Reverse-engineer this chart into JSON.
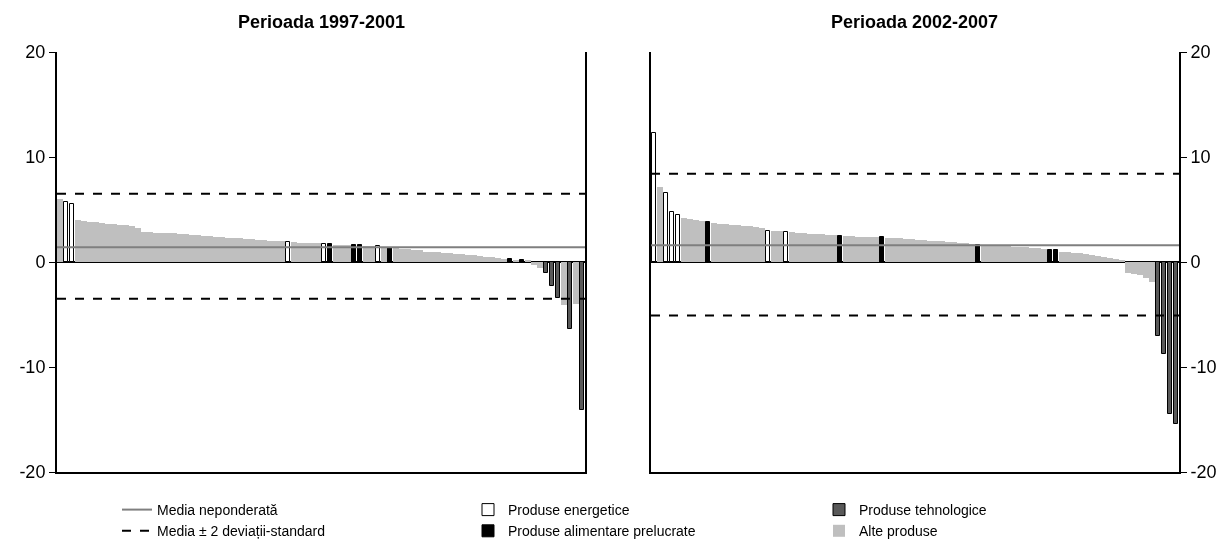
{
  "chart_data": [
    {
      "type": "bar",
      "title": "Perioada 1997-2001",
      "categories": [
        null,
        null,
        null,
        null,
        null,
        null,
        null,
        null,
        null,
        null,
        null,
        null,
        null,
        null,
        null,
        null,
        null,
        null,
        null,
        null,
        null,
        null,
        null,
        null,
        null,
        null,
        null,
        null,
        null,
        null,
        null,
        null,
        null,
        null,
        null,
        null,
        null,
        null,
        null,
        null,
        null,
        null,
        null,
        null,
        null,
        null,
        null,
        null,
        null,
        null,
        null,
        null,
        null,
        null,
        null,
        null,
        null,
        null,
        null,
        null,
        null,
        null,
        null,
        null,
        null,
        null,
        null,
        null,
        null,
        null,
        null,
        null,
        null,
        null,
        null,
        null,
        null,
        null,
        null,
        null,
        null,
        null,
        null,
        null,
        null,
        null,
        null,
        null
      ],
      "series": [
        {
          "name": "Produse energetice",
          "color": "#ffffff",
          "values": [
            null,
            5.7,
            5.5,
            null,
            null,
            null,
            null,
            null,
            null,
            null,
            null,
            null,
            null,
            null,
            null,
            null,
            null,
            null,
            null,
            null,
            null,
            null,
            null,
            null,
            null,
            null,
            null,
            null,
            null,
            null,
            null,
            null,
            null,
            null,
            null,
            null,
            null,
            null,
            1.9,
            null,
            null,
            null,
            null,
            null,
            1.7,
            null,
            null,
            null,
            null,
            null,
            null,
            null,
            null,
            1.5,
            null,
            null,
            null,
            null,
            null,
            null,
            null,
            null,
            null,
            null,
            null,
            null,
            null,
            null,
            null,
            null,
            null,
            null,
            null,
            null,
            null,
            null,
            null,
            null,
            null,
            null,
            null,
            null,
            null,
            null,
            null,
            null,
            null,
            null
          ]
        },
        {
          "name": "Produse alimentare prelucrate",
          "color": "#000000",
          "values": [
            null,
            null,
            null,
            null,
            null,
            null,
            null,
            null,
            null,
            null,
            null,
            null,
            null,
            null,
            null,
            null,
            null,
            null,
            null,
            null,
            null,
            null,
            null,
            null,
            null,
            null,
            null,
            null,
            null,
            null,
            null,
            null,
            null,
            null,
            null,
            null,
            null,
            null,
            null,
            null,
            null,
            null,
            null,
            null,
            null,
            1.7,
            null,
            null,
            null,
            1.6,
            1.6,
            null,
            null,
            null,
            null,
            1.3,
            null,
            null,
            null,
            null,
            null,
            null,
            null,
            null,
            null,
            null,
            null,
            null,
            null,
            null,
            null,
            null,
            null,
            null,
            null,
            0.3,
            null,
            0.2,
            null,
            null,
            null,
            null,
            null,
            null,
            null,
            null,
            null,
            null
          ]
        },
        {
          "name": "Produse tehnologice",
          "color": "#595959",
          "values": [
            null,
            null,
            null,
            null,
            null,
            null,
            null,
            null,
            null,
            null,
            null,
            null,
            null,
            null,
            null,
            null,
            null,
            null,
            null,
            null,
            null,
            null,
            null,
            null,
            null,
            null,
            null,
            null,
            null,
            null,
            null,
            null,
            null,
            null,
            null,
            null,
            null,
            null,
            null,
            null,
            null,
            null,
            null,
            null,
            null,
            null,
            null,
            null,
            null,
            null,
            null,
            null,
            null,
            null,
            null,
            null,
            null,
            null,
            null,
            null,
            null,
            null,
            null,
            null,
            null,
            null,
            null,
            null,
            null,
            null,
            null,
            null,
            null,
            null,
            null,
            null,
            null,
            null,
            null,
            null,
            null,
            -1.0,
            -2.3,
            -3.4,
            null,
            -6.4,
            null,
            -14.1
          ]
        },
        {
          "name": "Alte produse",
          "color": "#bfbfbf",
          "values": [
            6.0,
            null,
            null,
            4.0,
            3.9,
            3.8,
            3.8,
            3.7,
            3.6,
            3.6,
            3.5,
            3.5,
            3.4,
            3.2,
            2.9,
            2.9,
            2.8,
            2.8,
            2.8,
            2.8,
            2.7,
            2.7,
            2.6,
            2.6,
            2.5,
            2.5,
            2.4,
            2.4,
            2.3,
            2.3,
            2.3,
            2.2,
            2.2,
            2.1,
            2.1,
            2.0,
            2.0,
            2.0,
            null,
            1.9,
            1.8,
            1.8,
            1.8,
            1.8,
            null,
            null,
            1.6,
            1.6,
            1.6,
            null,
            null,
            1.5,
            1.5,
            null,
            1.4,
            null,
            1.3,
            1.2,
            1.2,
            1.1,
            1.1,
            1.0,
            1.0,
            1.0,
            0.9,
            0.9,
            0.8,
            0.8,
            0.7,
            0.7,
            0.6,
            0.5,
            0.5,
            0.4,
            0.3,
            null,
            0.2,
            null,
            0.1,
            -0.3,
            -0.6,
            null,
            null,
            null,
            -4.1,
            null,
            -4.0,
            null
          ]
        }
      ],
      "ylim": [
        -20,
        20
      ],
      "yticks": [
        -20,
        -10,
        0,
        10,
        20
      ],
      "legend": "bottom",
      "ref_lines": [
        {
          "axis": "y",
          "value": 1.4,
          "label": "Media neponderată",
          "color": "#7f7f7f",
          "line_style": "solid"
        },
        {
          "axis": "y",
          "value": 6.5,
          "label": "Media ± 2 deviații-standard",
          "color": "#000000",
          "line_style": "dashed"
        },
        {
          "axis": "y",
          "value": -3.5,
          "color": "#000000",
          "line_style": "dashed"
        }
      ]
    },
    {
      "type": "bar",
      "title": "Perioada 2002-2007",
      "categories": [
        null,
        null,
        null,
        null,
        null,
        null,
        null,
        null,
        null,
        null,
        null,
        null,
        null,
        null,
        null,
        null,
        null,
        null,
        null,
        null,
        null,
        null,
        null,
        null,
        null,
        null,
        null,
        null,
        null,
        null,
        null,
        null,
        null,
        null,
        null,
        null,
        null,
        null,
        null,
        null,
        null,
        null,
        null,
        null,
        null,
        null,
        null,
        null,
        null,
        null,
        null,
        null,
        null,
        null,
        null,
        null,
        null,
        null,
        null,
        null,
        null,
        null,
        null,
        null,
        null,
        null,
        null,
        null,
        null,
        null,
        null,
        null,
        null,
        null,
        null,
        null,
        null,
        null,
        null,
        null,
        null,
        null,
        null,
        null,
        null,
        null,
        null,
        null
      ],
      "series": [
        {
          "color": "#ffffff",
          "values": [
            12.3,
            null,
            6.6,
            4.8,
            4.5,
            null,
            null,
            null,
            null,
            null,
            null,
            null,
            null,
            null,
            null,
            null,
            null,
            null,
            null,
            3.0,
            null,
            null,
            2.9,
            null,
            null,
            null,
            null,
            null,
            null,
            null,
            null,
            null,
            null,
            null,
            null,
            null,
            null,
            null,
            null,
            null,
            null,
            null,
            null,
            null,
            null,
            null,
            null,
            null,
            null,
            null,
            null,
            null,
            null,
            null,
            null,
            null,
            null,
            null,
            null,
            null,
            null,
            null,
            null,
            null,
            null,
            null,
            null,
            null,
            null,
            null,
            null,
            null,
            null,
            null,
            null,
            null,
            null,
            null,
            null,
            null,
            null,
            null,
            null,
            null,
            null,
            null,
            null,
            null
          ]
        },
        {
          "color": "#000000",
          "values": [
            null,
            null,
            null,
            null,
            null,
            null,
            null,
            null,
            null,
            3.8,
            null,
            null,
            null,
            null,
            null,
            null,
            null,
            null,
            null,
            null,
            null,
            null,
            null,
            null,
            null,
            null,
            null,
            null,
            null,
            null,
            null,
            2.5,
            null,
            null,
            null,
            null,
            null,
            null,
            2.4,
            null,
            null,
            null,
            null,
            null,
            null,
            null,
            null,
            null,
            null,
            null,
            null,
            null,
            null,
            null,
            1.6,
            null,
            null,
            null,
            null,
            null,
            null,
            null,
            null,
            null,
            null,
            null,
            1.1,
            1.1,
            null,
            null,
            null,
            null,
            null,
            null,
            null,
            null,
            null,
            null,
            null,
            null,
            null,
            null,
            null,
            null,
            null,
            null,
            null,
            null
          ]
        },
        {
          "color": "#595959",
          "values": [
            null,
            null,
            null,
            null,
            null,
            null,
            null,
            null,
            null,
            null,
            null,
            null,
            null,
            null,
            null,
            null,
            null,
            null,
            null,
            null,
            null,
            null,
            null,
            null,
            null,
            null,
            null,
            null,
            null,
            null,
            null,
            null,
            null,
            null,
            null,
            null,
            null,
            null,
            null,
            null,
            null,
            null,
            null,
            null,
            null,
            null,
            null,
            null,
            null,
            null,
            null,
            null,
            null,
            null,
            null,
            null,
            null,
            null,
            null,
            null,
            null,
            null,
            null,
            null,
            null,
            null,
            null,
            null,
            null,
            null,
            null,
            null,
            null,
            null,
            null,
            null,
            null,
            null,
            null,
            null,
            null,
            null,
            null,
            null,
            -7.0,
            -8.8,
            -14.5,
            -15.4
          ]
        },
        {
          "color": "#bfbfbf",
          "values": [
            null,
            7.1,
            null,
            null,
            null,
            4.2,
            4.1,
            4.0,
            3.9,
            null,
            3.7,
            3.6,
            3.6,
            3.5,
            3.5,
            3.4,
            3.4,
            3.3,
            3.2,
            null,
            3.0,
            3.0,
            null,
            2.9,
            2.8,
            2.8,
            2.7,
            2.7,
            2.7,
            2.6,
            2.6,
            null,
            2.5,
            2.5,
            2.4,
            2.4,
            2.4,
            2.4,
            null,
            2.3,
            2.3,
            2.3,
            2.2,
            2.2,
            2.1,
            2.1,
            2.0,
            2.0,
            2.0,
            1.9,
            1.9,
            1.8,
            1.8,
            1.7,
            null,
            1.6,
            1.5,
            1.5,
            1.5,
            1.5,
            1.4,
            1.4,
            1.4,
            1.3,
            1.3,
            1.2,
            null,
            null,
            1.0,
            1.0,
            0.9,
            0.9,
            0.8,
            0.7,
            0.6,
            0.5,
            0.4,
            0.3,
            0.1,
            -1.0,
            -1.1,
            -1.2,
            -1.5,
            -1.9,
            null,
            null,
            null,
            null
          ]
        }
      ],
      "ylim": [
        -20,
        20
      ],
      "yticks": [
        -20,
        -10,
        0,
        10,
        20
      ],
      "ref_lines": [
        {
          "axis": "y",
          "value": 1.6,
          "color": "#7f7f7f",
          "line_style": "solid"
        },
        {
          "axis": "y",
          "value": 8.4,
          "color": "#000000",
          "line_style": "dashed"
        },
        {
          "axis": "y",
          "value": -5.1,
          "color": "#000000",
          "line_style": "dashed"
        }
      ]
    }
  ]
}
